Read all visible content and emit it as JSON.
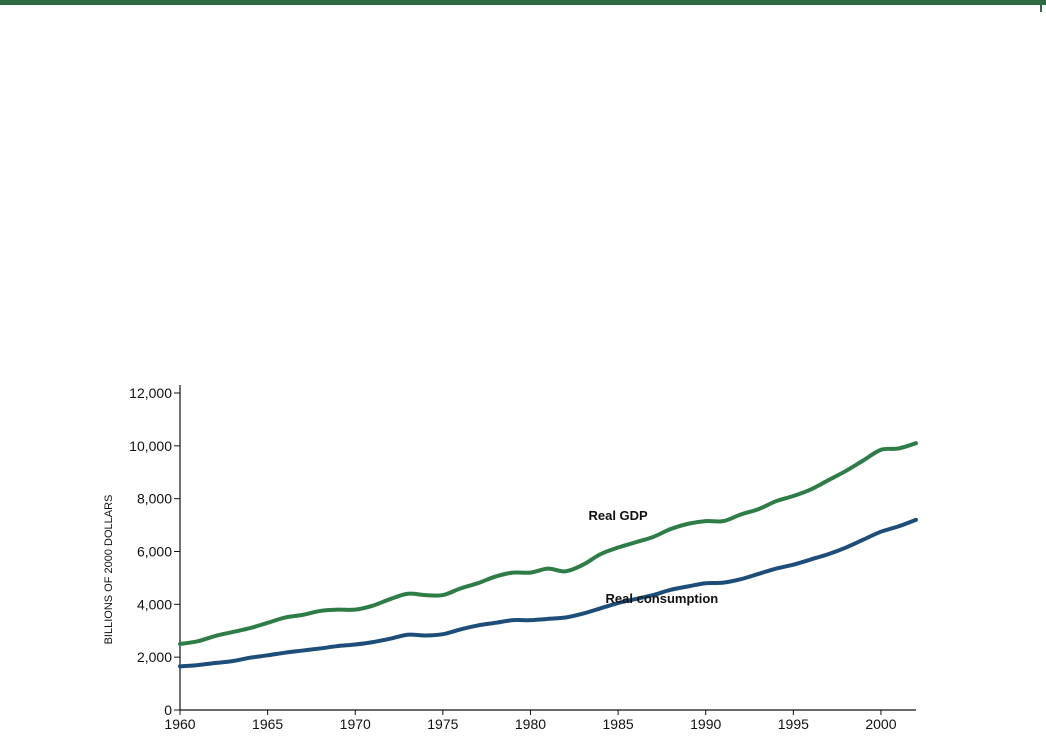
{
  "chart_data": {
    "type": "line",
    "title": "",
    "xlabel": "",
    "ylabel": "BILLIONS OF 2000 DOLLARS",
    "xlim": [
      1960,
      2002
    ],
    "ylim": [
      0,
      12000
    ],
    "x_ticks": [
      1960,
      1965,
      1970,
      1975,
      1980,
      1985,
      1990,
      1995,
      2000
    ],
    "x_tick_labels": [
      "1960",
      "1965",
      "1970",
      "1975",
      "1980",
      "1985",
      "1990",
      "1995",
      "2000"
    ],
    "y_ticks": [
      0,
      2000,
      4000,
      6000,
      8000,
      10000,
      12000
    ],
    "y_tick_labels": [
      "0",
      "2,000",
      "4,000",
      "6,000",
      "8,000",
      "10,000",
      "12,000"
    ],
    "grid": false,
    "legend": "inline labels",
    "series": [
      {
        "name": "Real GDP",
        "color": "#2e7d46",
        "label_at": [
          1985,
          7200
        ],
        "x": [
          1960,
          1961,
          1962,
          1963,
          1964,
          1965,
          1966,
          1967,
          1968,
          1969,
          1970,
          1971,
          1972,
          1973,
          1974,
          1975,
          1976,
          1977,
          1978,
          1979,
          1980,
          1981,
          1982,
          1983,
          1984,
          1985,
          1986,
          1987,
          1988,
          1989,
          1990,
          1991,
          1992,
          1993,
          1994,
          1995,
          1996,
          1997,
          1998,
          1999,
          2000,
          2001,
          2002
        ],
        "values": [
          2500,
          2600,
          2800,
          2950,
          3100,
          3300,
          3500,
          3600,
          3750,
          3800,
          3800,
          3950,
          4200,
          4400,
          4350,
          4350,
          4600,
          4800,
          5050,
          5200,
          5200,
          5350,
          5250,
          5500,
          5900,
          6150,
          6350,
          6550,
          6850,
          7050,
          7150,
          7150,
          7400,
          7600,
          7900,
          8100,
          8350,
          8700,
          9050,
          9450,
          9850,
          9900,
          10100
        ]
      },
      {
        "name": "Real consumption",
        "color": "#1d4e79",
        "label_at": [
          1987.5,
          4050
        ],
        "x": [
          1960,
          1961,
          1962,
          1963,
          1964,
          1965,
          1966,
          1967,
          1968,
          1969,
          1970,
          1971,
          1972,
          1973,
          1974,
          1975,
          1976,
          1977,
          1978,
          1979,
          1980,
          1981,
          1982,
          1983,
          1984,
          1985,
          1986,
          1987,
          1988,
          1989,
          1990,
          1991,
          1992,
          1993,
          1994,
          1995,
          1996,
          1997,
          1998,
          1999,
          2000,
          2001,
          2002
        ],
        "values": [
          1650,
          1700,
          1780,
          1850,
          1980,
          2070,
          2170,
          2250,
          2330,
          2420,
          2480,
          2570,
          2700,
          2850,
          2820,
          2870,
          3050,
          3200,
          3300,
          3400,
          3400,
          3450,
          3500,
          3650,
          3850,
          4050,
          4200,
          4350,
          4550,
          4680,
          4800,
          4820,
          4950,
          5150,
          5350,
          5500,
          5700,
          5900,
          6150,
          6450,
          6750,
          6950,
          7200
        ]
      }
    ]
  }
}
